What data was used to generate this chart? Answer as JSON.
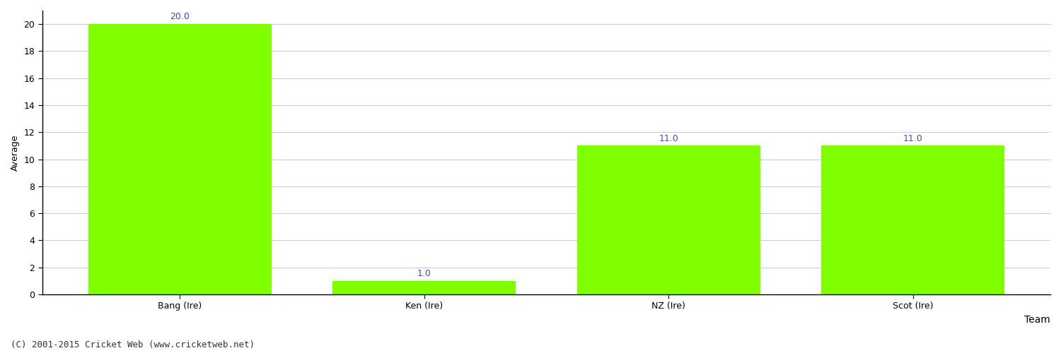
{
  "categories": [
    "Bang (Ire)",
    "Ken (Ire)",
    "NZ (Ire)",
    "Scot (Ire)"
  ],
  "values": [
    20.0,
    1.0,
    11.0,
    11.0
  ],
  "bar_color": "#7FFF00",
  "bar_edge_color": "#7FFF00",
  "value_label_color": "#4444cc",
  "value_label_fontsize": 9,
  "xlabel": "Team",
  "ylabel": "Average",
  "ylim": [
    0,
    21
  ],
  "yticks": [
    0,
    2,
    4,
    6,
    8,
    10,
    12,
    14,
    16,
    18,
    20
  ],
  "grid_color": "#cccccc",
  "background_color": "#ffffff",
  "footnote": "(C) 2001-2015 Cricket Web (www.cricketweb.net)",
  "footnote_fontsize": 9,
  "footnote_color": "#333333",
  "xlabel_fontsize": 10,
  "ylabel_fontsize": 9,
  "tick_fontsize": 9,
  "spine_color": "#000000",
  "bar_width": 0.75
}
